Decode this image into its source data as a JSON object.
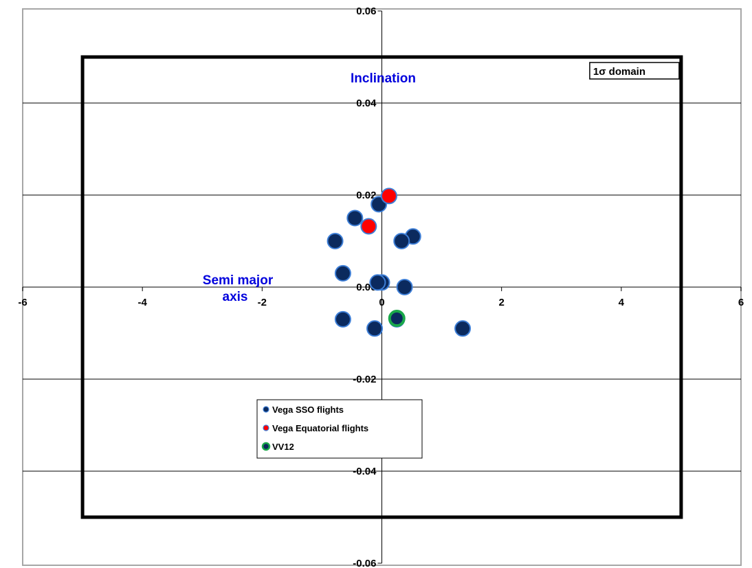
{
  "chart_data": {
    "type": "scatter",
    "xlim": [
      -6,
      6
    ],
    "ylim": [
      -0.06,
      0.06
    ],
    "x_ticks": [
      -6,
      -4,
      -2,
      0,
      2,
      4,
      6
    ],
    "x_tick_labels": [
      "-6",
      "-4",
      "-2",
      "0",
      "2",
      "4",
      "6"
    ],
    "y_ticks": [
      -0.06,
      -0.04,
      -0.02,
      0.0,
      0.02,
      0.04,
      0.06
    ],
    "y_tick_labels": [
      "-0.06",
      "-0.04",
      "-0.02",
      "0.00",
      "0.02",
      "0.04",
      "0.06"
    ],
    "xlabel": "Semi major axis",
    "ylabel": "Inclination",
    "grid": "horizontal",
    "legend_position": "bottom-center",
    "domain_box": {
      "label": "1σ domain",
      "x": [
        -5,
        5
      ],
      "y": [
        -0.05,
        0.05
      ]
    },
    "series": [
      {
        "name": "Vega SSO flights",
        "color": "#0b2a5e",
        "outline": "#3d7ed6",
        "points": [
          [
            -0.05,
            0.018
          ],
          [
            -0.45,
            0.015
          ],
          [
            -0.78,
            0.01
          ],
          [
            0.52,
            0.011
          ],
          [
            0.33,
            0.01
          ],
          [
            -0.65,
            0.003
          ],
          [
            0.0,
            0.001
          ],
          [
            -0.07,
            0.001
          ],
          [
            0.38,
            0.0
          ],
          [
            -0.65,
            -0.007
          ],
          [
            -0.12,
            -0.009
          ],
          [
            1.35,
            -0.009
          ],
          [
            0.25,
            -0.007
          ]
        ]
      },
      {
        "name": "Vega Equatorial flights",
        "color": "#ff0000",
        "outline": "#3d7ed6",
        "points": [
          [
            0.12,
            0.0198
          ],
          [
            -0.22,
            0.0132
          ]
        ]
      },
      {
        "name": "VV12",
        "color": "#0b2a5e",
        "outline": "#1aa84a",
        "points": [
          [
            0.25,
            -0.0068
          ]
        ]
      }
    ]
  },
  "colors": {
    "axis_title": "#0000dd",
    "grid": "#000000",
    "domain_box": "#000000",
    "frame": "#a6a6a6"
  }
}
